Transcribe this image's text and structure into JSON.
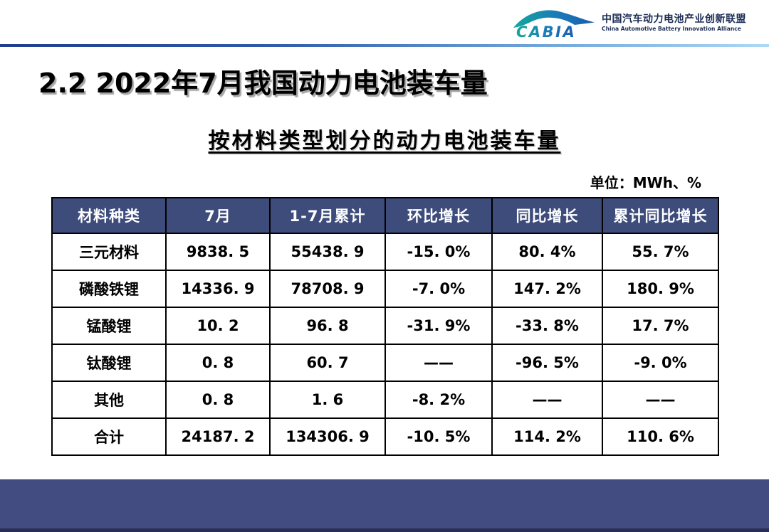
{
  "header": {
    "logo": {
      "abbr": "CABIA",
      "name_zh": "中国汽车动力电池产业创新联盟",
      "name_en": "China Automotive Battery Innovation Alliance"
    }
  },
  "title": "2.2 2022年7月我国动力电池装车量",
  "subtitle": "按材料类型划分的动力电池装车量",
  "unit_label": "单位：MWh、%",
  "table": {
    "headers": [
      "材料种类",
      "7月",
      "1-7月累计",
      "环比增长",
      "同比增长",
      "累计同比增长"
    ],
    "rows": [
      [
        "三元材料",
        "9838. 5",
        "55438. 9",
        "-15. 0%",
        "80. 4%",
        "55. 7%"
      ],
      [
        "磷酸铁锂",
        "14336. 9",
        "78708. 9",
        "-7. 0%",
        "147. 2%",
        "180. 9%"
      ],
      [
        "锰酸锂",
        "10. 2",
        "96. 8",
        "-31. 9%",
        "-33. 8%",
        "17. 7%"
      ],
      [
        "钛酸锂",
        "0. 8",
        "60. 7",
        "——",
        "-96. 5%",
        "-9. 0%"
      ],
      [
        "其他",
        "0. 8",
        "1. 6",
        "-8. 2%",
        "——",
        "——"
      ],
      [
        "合计",
        "24187. 2",
        "134306. 9",
        "-10. 5%",
        "114. 2%",
        "110. 6%"
      ]
    ]
  },
  "chart_data": {
    "type": "table",
    "title": "按材料类型划分的动力电池装车量",
    "unit": "MWh、%",
    "columns": [
      "材料种类",
      "7月",
      "1-7月累计",
      "环比增长",
      "同比增长",
      "累计同比增长"
    ],
    "rows": [
      [
        "三元材料",
        9838.5,
        55438.9,
        "-15.0%",
        "80.4%",
        "55.7%"
      ],
      [
        "磷酸铁锂",
        14336.9,
        78708.9,
        "-7.0%",
        "147.2%",
        "180.9%"
      ],
      [
        "锰酸锂",
        10.2,
        96.8,
        "-31.9%",
        "-33.8%",
        "17.7%"
      ],
      [
        "钛酸锂",
        0.8,
        60.7,
        null,
        "-96.5%",
        "-9.0%"
      ],
      [
        "其他",
        0.8,
        1.6,
        "-8.2%",
        null,
        null
      ],
      [
        "合计",
        24187.2,
        134306.9,
        "-10.5%",
        "114.2%",
        "110.6%"
      ]
    ]
  },
  "colors": {
    "table_header_bg": "#3e4c7c",
    "footer_bar": "#424c80",
    "divider_gradient_start": "#1f3e8c",
    "divider_gradient_end": "#aed9f5",
    "logo_teal": "#14a79d",
    "logo_blue": "#1a5cae"
  }
}
